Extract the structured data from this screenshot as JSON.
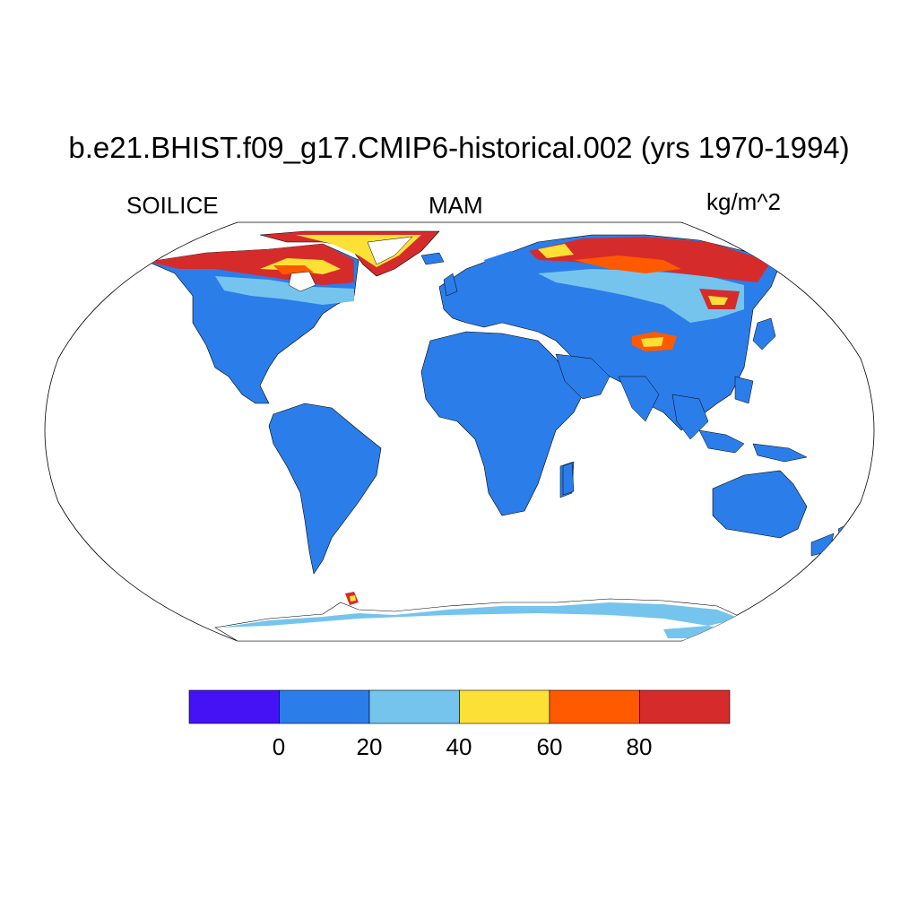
{
  "title": "b.e21.BHIST.f09_g17.CMIP6-historical.002 (yrs 1970-1994)",
  "variable": "SOILICE",
  "season": "MAM",
  "units": "kg/m^2",
  "colors": {
    "ocean": "#ffffff",
    "coast": "#000000",
    "bins": [
      "#4512f5",
      "#2b7de9",
      "#75c4ee",
      "#fde035",
      "#ff5a00",
      "#d62b2b"
    ]
  },
  "colorbar": {
    "labels": [
      "0",
      "20",
      "40",
      "60",
      "80"
    ]
  },
  "map": {
    "projection": "Robinson",
    "description_regions": [
      "north-america",
      "south-america",
      "greenland",
      "europe-asia",
      "africa",
      "australia",
      "antarctica"
    ]
  }
}
